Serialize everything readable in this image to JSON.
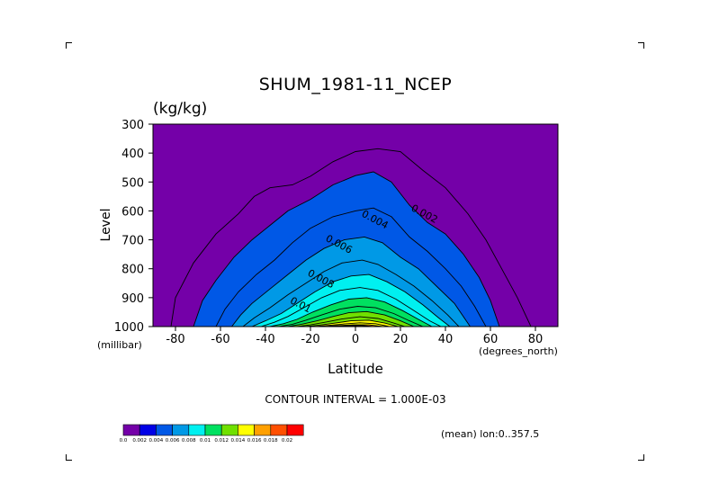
{
  "chart_data": {
    "type": "contour",
    "title": "SHUM_1981-11_NCEP",
    "units": "(kg/kg)",
    "xlabel": "Latitude",
    "ylabel": "Level",
    "x_unit_label": "(degrees_north)",
    "y_unit_label": "(millibar)",
    "xlim": [
      -90,
      90
    ],
    "ylim": [
      1000,
      300
    ],
    "x_ticks": [
      -80,
      -60,
      -40,
      -20,
      0,
      20,
      40,
      60,
      80
    ],
    "y_ticks": [
      300,
      400,
      500,
      600,
      700,
      800,
      900,
      1000
    ],
    "contour_interval_text": "CONTOUR INTERVAL = 1.000E-03",
    "mean_text": "(mean) lon:0..357.5",
    "level_bounds": [
      0.0,
      0.002,
      0.004,
      0.006,
      0.008,
      0.01,
      0.012,
      0.014,
      0.016,
      0.018,
      0.02
    ],
    "colorbar_labels": [
      "0.0",
      "0.002",
      "0.004",
      "0.006",
      "0.008",
      "0.01",
      "0.012",
      "0.014",
      "0.016",
      "0.018",
      "0.02"
    ],
    "colors": [
      "#7400a8",
      "#0000e6",
      "#0058e6",
      "#0099e6",
      "#00f0f0",
      "#00e060",
      "#70e000",
      "#ffff00",
      "#ffa000",
      "#ff5000",
      "#ff0000"
    ],
    "contour_labels": [
      {
        "text": "0.002",
        "lat": 30,
        "p": 620
      },
      {
        "text": "0.004",
        "lat": 8,
        "p": 640
      },
      {
        "text": "0.006",
        "lat": -8,
        "p": 725
      },
      {
        "text": "0.008",
        "lat": -16,
        "p": 845
      },
      {
        "text": "0.01",
        "lat": -25,
        "p": 935
      }
    ],
    "contours": [
      {
        "level": 0.001,
        "points": [
          [
            -90,
            1000
          ],
          [
            -90,
            1000
          ]
        ]
      },
      {
        "level": 0.001,
        "points": [
          [
            -82,
            1000
          ],
          [
            -80,
            900
          ],
          [
            -72,
            780
          ],
          [
            -62,
            680
          ],
          [
            -52,
            610
          ],
          [
            -45,
            550
          ],
          [
            -38,
            520
          ],
          [
            -28,
            510
          ],
          [
            -20,
            480
          ],
          [
            -10,
            430
          ],
          [
            0,
            395
          ],
          [
            10,
            385
          ],
          [
            20,
            395
          ],
          [
            30,
            460
          ],
          [
            40,
            520
          ],
          [
            50,
            610
          ],
          [
            58,
            700
          ],
          [
            65,
            800
          ],
          [
            72,
            900
          ],
          [
            78,
            1000
          ]
        ]
      },
      {
        "level": 0.002,
        "points": [
          [
            -72,
            1000
          ],
          [
            -68,
            910
          ],
          [
            -62,
            840
          ],
          [
            -54,
            760
          ],
          [
            -46,
            700
          ],
          [
            -38,
            650
          ],
          [
            -30,
            600
          ],
          [
            -20,
            560
          ],
          [
            -10,
            510
          ],
          [
            0,
            478
          ],
          [
            8,
            465
          ],
          [
            16,
            500
          ],
          [
            24,
            580
          ],
          [
            32,
            640
          ],
          [
            40,
            680
          ],
          [
            48,
            750
          ],
          [
            55,
            830
          ],
          [
            60,
            910
          ],
          [
            64,
            1000
          ]
        ]
      },
      {
        "level": 0.003,
        "points": [
          [
            -62,
            1000
          ],
          [
            -58,
            940
          ],
          [
            -52,
            880
          ],
          [
            -44,
            820
          ],
          [
            -36,
            770
          ],
          [
            -28,
            710
          ],
          [
            -20,
            660
          ],
          [
            -10,
            620
          ],
          [
            0,
            600
          ],
          [
            8,
            590
          ],
          [
            16,
            620
          ],
          [
            24,
            690
          ],
          [
            32,
            740
          ],
          [
            40,
            800
          ],
          [
            47,
            860
          ],
          [
            53,
            930
          ],
          [
            58,
            1000
          ]
        ]
      },
      {
        "level": 0.004,
        "points": [
          [
            -55,
            1000
          ],
          [
            -51,
            960
          ],
          [
            -46,
            920
          ],
          [
            -38,
            870
          ],
          [
            -30,
            820
          ],
          [
            -22,
            770
          ],
          [
            -14,
            730
          ],
          [
            -5,
            700
          ],
          [
            4,
            690
          ],
          [
            12,
            710
          ],
          [
            20,
            760
          ],
          [
            28,
            800
          ],
          [
            36,
            860
          ],
          [
            44,
            920
          ],
          [
            51,
            1000
          ]
        ]
      },
      {
        "level": 0.005,
        "points": [
          [
            -50,
            1000
          ],
          [
            -45,
            970
          ],
          [
            -38,
            935
          ],
          [
            -30,
            890
          ],
          [
            -22,
            850
          ],
          [
            -14,
            810
          ],
          [
            -6,
            780
          ],
          [
            3,
            770
          ],
          [
            10,
            785
          ],
          [
            18,
            820
          ],
          [
            26,
            860
          ],
          [
            34,
            910
          ],
          [
            41,
            960
          ],
          [
            46,
            1000
          ]
        ]
      },
      {
        "level": 0.006,
        "points": [
          [
            -46,
            1000
          ],
          [
            -40,
            980
          ],
          [
            -33,
            955
          ],
          [
            -26,
            920
          ],
          [
            -18,
            880
          ],
          [
            -10,
            845
          ],
          [
            -2,
            825
          ],
          [
            6,
            820
          ],
          [
            14,
            845
          ],
          [
            22,
            880
          ],
          [
            30,
            925
          ],
          [
            37,
            970
          ],
          [
            42,
            1000
          ]
        ]
      },
      {
        "level": 0.007,
        "points": [
          [
            -42,
            1000
          ],
          [
            -36,
            985
          ],
          [
            -30,
            965
          ],
          [
            -23,
            935
          ],
          [
            -15,
            900
          ],
          [
            -7,
            875
          ],
          [
            2,
            865
          ],
          [
            10,
            875
          ],
          [
            18,
            905
          ],
          [
            26,
            945
          ],
          [
            33,
            980
          ],
          [
            38,
            1000
          ]
        ]
      },
      {
        "level": 0.008,
        "points": [
          [
            -38,
            1000
          ],
          [
            -32,
            990
          ],
          [
            -26,
            975
          ],
          [
            -19,
            950
          ],
          [
            -11,
            925
          ],
          [
            -3,
            905
          ],
          [
            5,
            900
          ],
          [
            13,
            915
          ],
          [
            21,
            945
          ],
          [
            28,
            975
          ],
          [
            34,
            1000
          ]
        ]
      },
      {
        "level": 0.009,
        "points": [
          [
            -34,
            1000
          ],
          [
            -28,
            992
          ],
          [
            -22,
            978
          ],
          [
            -15,
            960
          ],
          [
            -7,
            940
          ],
          [
            1,
            930
          ],
          [
            9,
            935
          ],
          [
            17,
            955
          ],
          [
            24,
            980
          ],
          [
            30,
            1000
          ]
        ]
      },
      {
        "level": 0.01,
        "points": [
          [
            -30,
            1000
          ],
          [
            -24,
            992
          ],
          [
            -17,
            980
          ],
          [
            -10,
            965
          ],
          [
            -3,
            952
          ],
          [
            5,
            948
          ],
          [
            13,
            960
          ],
          [
            20,
            980
          ],
          [
            26,
            1000
          ]
        ]
      },
      {
        "level": 0.011,
        "points": [
          [
            -26,
            1000
          ],
          [
            -20,
            994
          ],
          [
            -13,
            984
          ],
          [
            -6,
            974
          ],
          [
            2,
            966
          ],
          [
            10,
            972
          ],
          [
            17,
            988
          ],
          [
            22,
            1000
          ]
        ]
      },
      {
        "level": 0.012,
        "points": [
          [
            -22,
            1000
          ],
          [
            -16,
            995
          ],
          [
            -9,
            988
          ],
          [
            -2,
            980
          ],
          [
            6,
            978
          ],
          [
            13,
            988
          ],
          [
            19,
            1000
          ]
        ]
      },
      {
        "level": 0.013,
        "points": [
          [
            -18,
            1000
          ],
          [
            -12,
            996
          ],
          [
            -5,
            991
          ],
          [
            2,
            987
          ],
          [
            9,
            990
          ],
          [
            15,
            1000
          ]
        ]
      },
      {
        "level": 0.014,
        "points": [
          [
            -14,
            1000
          ],
          [
            -8,
            997
          ],
          [
            -1,
            994
          ],
          [
            6,
            994
          ],
          [
            12,
            1000
          ]
        ]
      },
      {
        "level": 0.015,
        "points": [
          [
            -10,
            1000
          ],
          [
            -4,
            997
          ],
          [
            2,
            996
          ],
          [
            8,
            1000
          ]
        ]
      },
      {
        "level": 0.016,
        "points": [
          [
            -6,
            1000
          ],
          [
            0,
            998
          ],
          [
            5,
            1000
          ]
        ]
      }
    ]
  }
}
